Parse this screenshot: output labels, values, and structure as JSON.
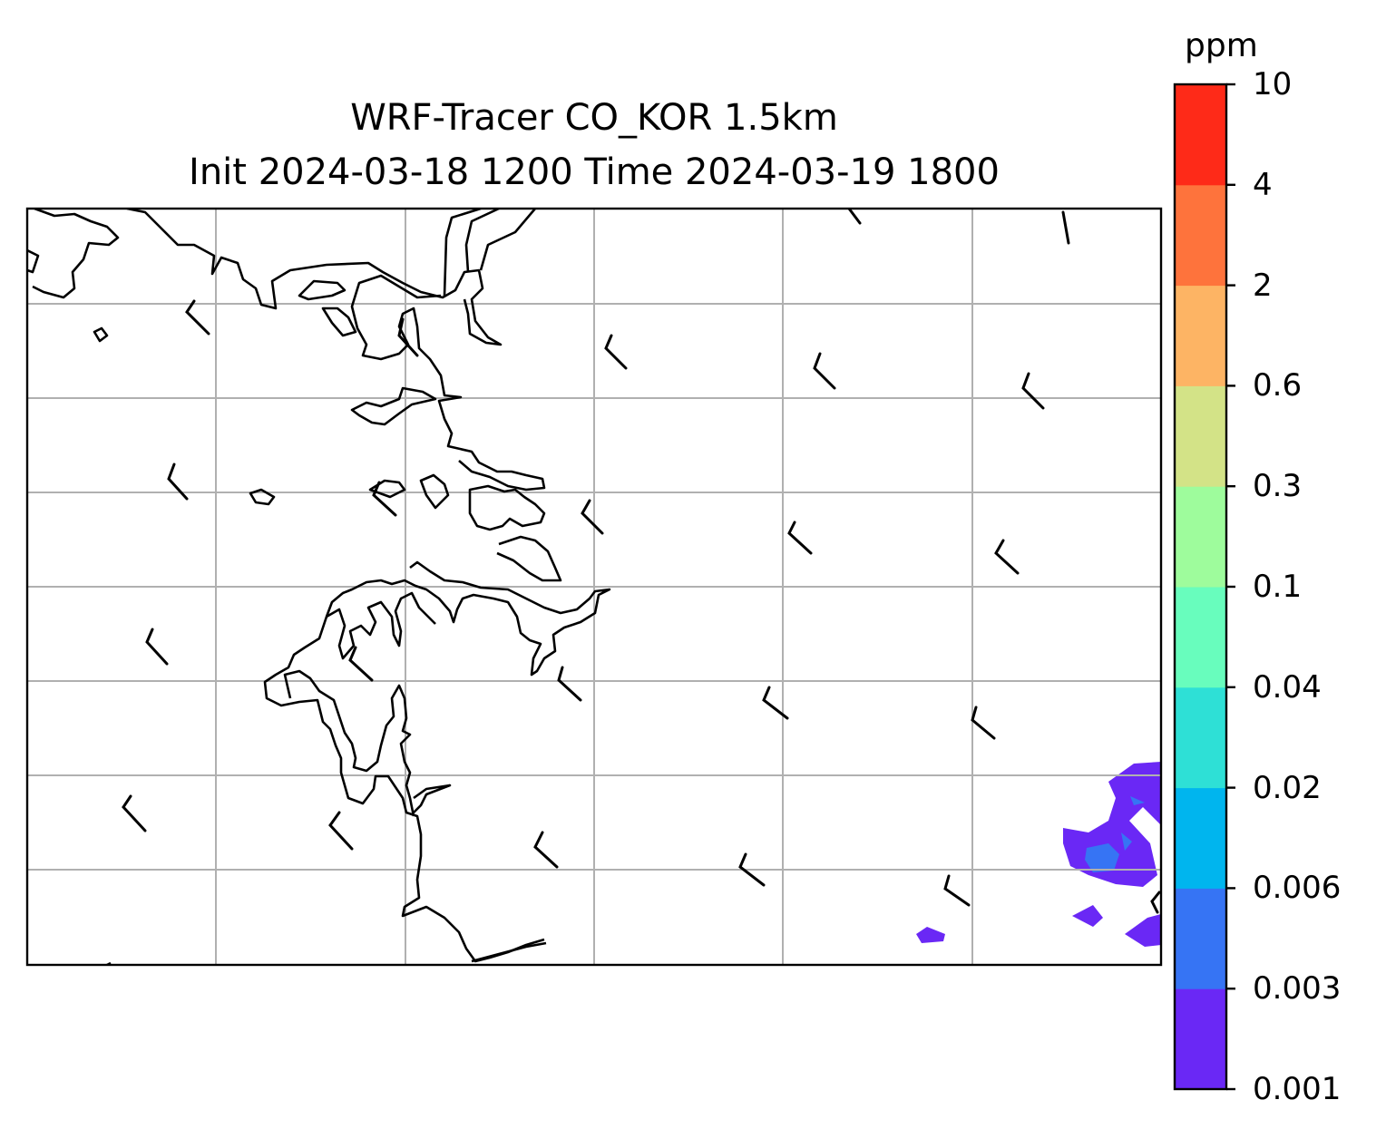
{
  "title": {
    "line1": "WRF-Tracer CO_KOR 1.5km",
    "line2": "Init 2024-03-18 1200 Time 2024-03-19 1800"
  },
  "colorbar": {
    "unit": "ppm",
    "levels": [
      "0.001",
      "0.003",
      "0.006",
      "0.02",
      "0.04",
      "0.1",
      "0.3",
      "0.6",
      "2",
      "4",
      "10"
    ],
    "colors": [
      "#6a28f5",
      "#3674f4",
      "#00b5ee",
      "#2ee0d6",
      "#68fdbd",
      "#9efc9c",
      "#d3e387",
      "#fdb464",
      "#fe733c",
      "#fe2a18"
    ]
  },
  "map": {
    "gridlines": true,
    "coastline_color": "#000000",
    "grid_color": "#b0b0b0",
    "features": [
      "coastline",
      "wind-barbs",
      "tracer-concentration-contours"
    ]
  }
}
